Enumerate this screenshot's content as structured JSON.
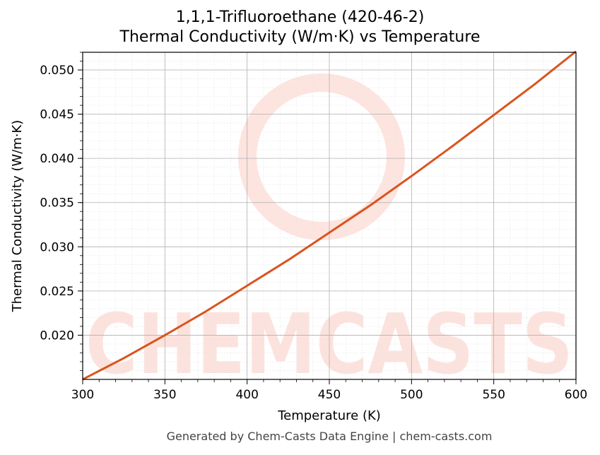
{
  "chart_data": {
    "type": "line",
    "title": "1,1,1-Trifluoroethane (420-46-2)",
    "subtitle": "Thermal Conductivity (W/m·K) vs Temperature",
    "xlabel": "Temperature (K)",
    "ylabel": "Thermal Conductivity (W/m·K)",
    "xlim": [
      300,
      600
    ],
    "ylim": [
      0.015,
      0.052
    ],
    "x_ticks": [
      300,
      350,
      400,
      450,
      500,
      550,
      600
    ],
    "x_tick_labels": [
      "300",
      "350",
      "400",
      "450",
      "500",
      "550",
      "600"
    ],
    "y_ticks": [
      0.02,
      0.025,
      0.03,
      0.035,
      0.04,
      0.045,
      0.05
    ],
    "y_tick_labels": [
      "0.020",
      "0.025",
      "0.030",
      "0.035",
      "0.040",
      "0.045",
      "0.050"
    ],
    "grid": true,
    "line_color": "#d9541e",
    "series": [
      {
        "x": [
          300,
          325,
          350,
          375,
          400,
          425,
          450,
          475,
          500,
          525,
          550,
          575,
          600
        ],
        "values": [
          0.015,
          0.0174,
          0.02,
          0.0227,
          0.0256,
          0.0285,
          0.0316,
          0.0347,
          0.038,
          0.0414,
          0.0449,
          0.0484,
          0.0521
        ]
      }
    ]
  },
  "watermark": {
    "text": "CHEMCASTS",
    "color": "#fcd9d2"
  },
  "footer": "Generated by Chem-Casts Data Engine | chem-casts.com"
}
